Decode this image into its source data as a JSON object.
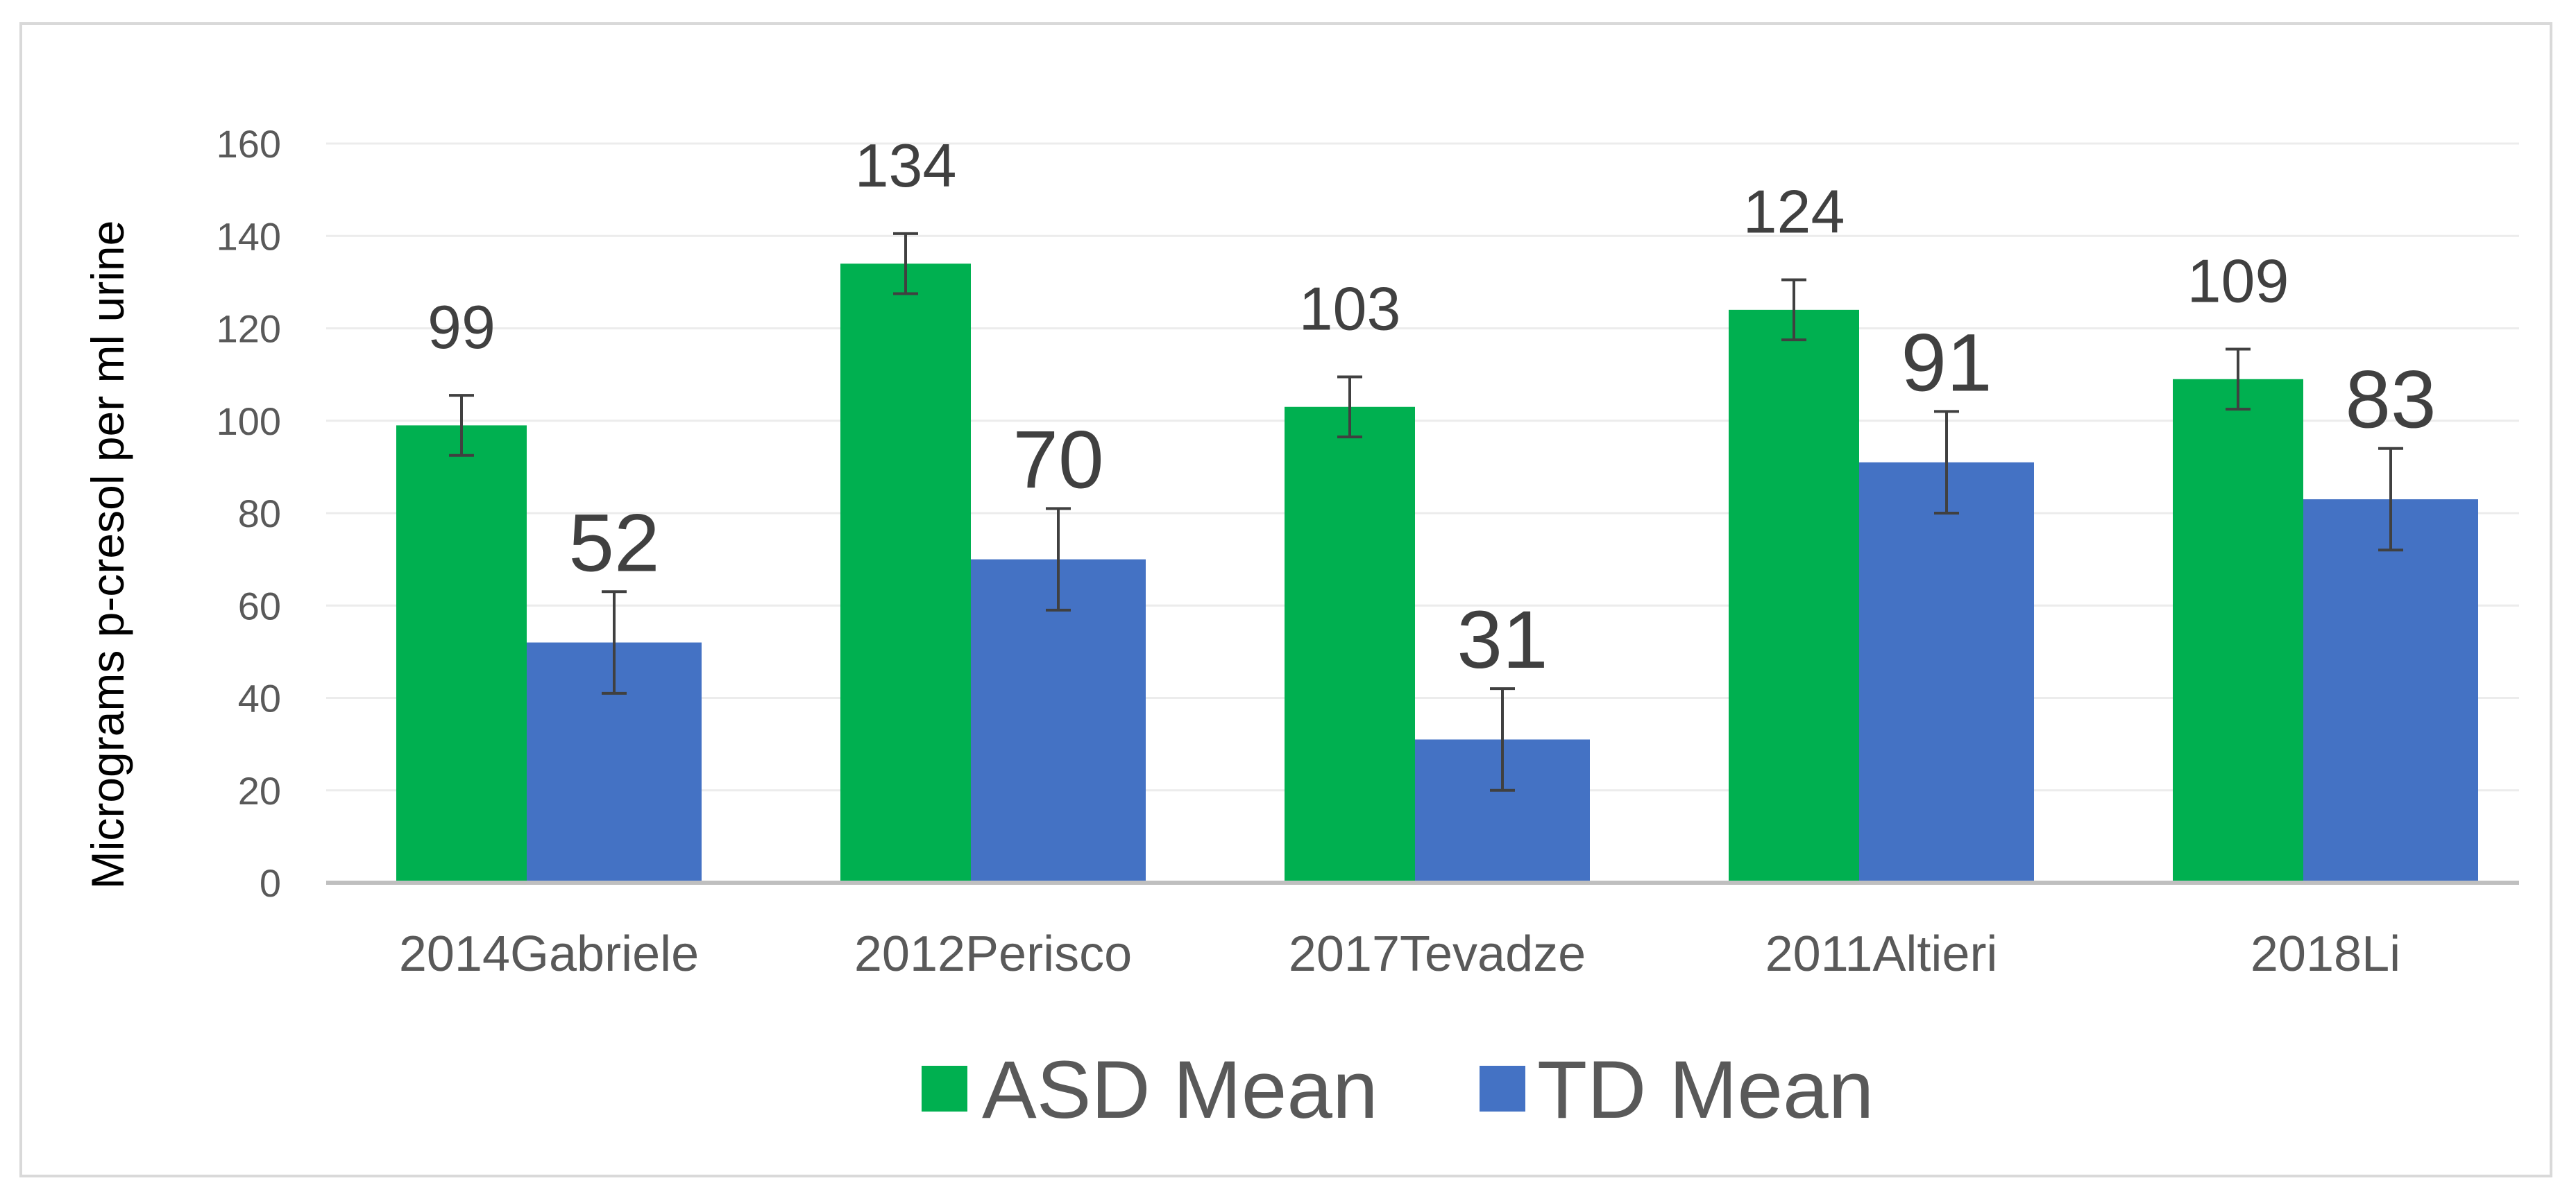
{
  "chart_data": {
    "type": "bar",
    "title": "",
    "xlabel": "",
    "ylabel": "Micrograms p-cresol per ml urine",
    "ylim": [
      0,
      160
    ],
    "yticks": [
      0,
      20,
      40,
      60,
      80,
      100,
      120,
      140,
      160
    ],
    "categories": [
      "2014Gabriele",
      "2012Perisco",
      "2017Tevadze",
      "2011Altieri",
      "2018Li"
    ],
    "series": [
      {
        "name": "ASD Mean",
        "color": "#00b050",
        "values": [
          99,
          134,
          103,
          124,
          109
        ],
        "error": [
          6.5,
          6.5,
          6.5,
          6.5,
          6.5
        ]
      },
      {
        "name": "TD Mean",
        "color": "#4472c4",
        "values": [
          52,
          70,
          31,
          91,
          83
        ],
        "error": [
          11,
          11,
          11,
          11,
          11
        ]
      }
    ],
    "legend_position": "bottom",
    "grid": true
  }
}
